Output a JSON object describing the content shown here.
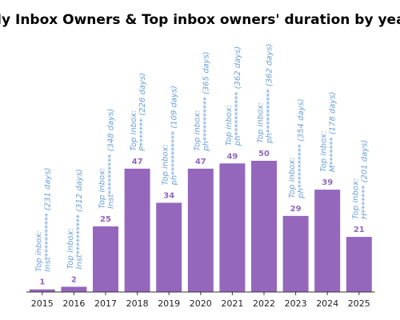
{
  "colors": {
    "bar": "#9467bd",
    "value_label": "#9467bd",
    "annotation": "#6a9fd8",
    "axis": "#333333"
  },
  "chart_data": {
    "type": "bar",
    "title": "My Inbox Owners & Top inbox owners' duration by year",
    "xlabel": "",
    "ylabel": "",
    "grid": false,
    "categories": [
      "2015",
      "2016",
      "2017",
      "2018",
      "2019",
      "2020",
      "2021",
      "2022",
      "2023",
      "2024",
      "2025"
    ],
    "values": [
      1,
      2,
      25,
      47,
      34,
      47,
      49,
      50,
      29,
      39,
      21
    ],
    "annotations": [
      [
        "Top inbox:",
        "Inst*********** (231 days)"
      ],
      [
        "Top inbox:",
        "Inst********** (312 days)"
      ],
      [
        "Top inbox:",
        "Inst********** (348 days)"
      ],
      [
        "Top inbox:",
        "P******* (226 days)"
      ],
      [
        "Top inbox:",
        "ph*********** (109 days)"
      ],
      [
        "Top inbox:",
        "ph*********** (365 days)"
      ],
      [
        "Top inbox:",
        "ph*********** (362 days)"
      ],
      [
        "Top inbox:",
        "ph*********** (362 days)"
      ],
      [
        "Top inbox:",
        "ph*********** (354 days)"
      ],
      [
        "Top inbox:",
        "M******* (178 days)"
      ],
      [
        "Top inbox:",
        "H******* (201 days)"
      ]
    ]
  }
}
